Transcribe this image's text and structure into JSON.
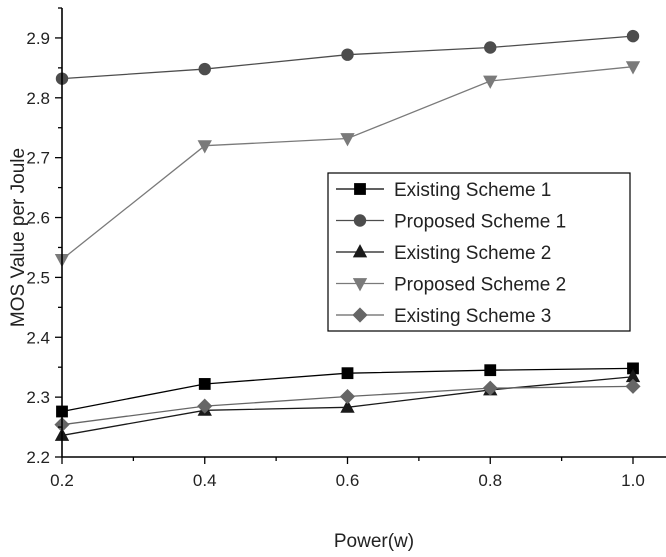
{
  "chart_data": {
    "type": "line",
    "title": "",
    "xlabel": "Power(w)",
    "ylabel": "MOS Value per Joule",
    "xlim": [
      0.2,
      1.0
    ],
    "ylim": [
      2.2,
      2.95
    ],
    "x_ticks": [
      0.2,
      0.4,
      0.6,
      0.8,
      1.0
    ],
    "x_tick_labels": [
      "0.2",
      "0.4",
      "0.6",
      "0.8",
      "1.0"
    ],
    "y_ticks": [
      2.2,
      2.3,
      2.4,
      2.5,
      2.6,
      2.7,
      2.8,
      2.9
    ],
    "y_tick_labels": [
      "2.2",
      "2.3",
      "2.4",
      "2.5",
      "2.6",
      "2.7",
      "2.8",
      "2.9"
    ],
    "legend_position": "center-right",
    "grid": false,
    "x": [
      0.2,
      0.4,
      0.6,
      0.8,
      1.0
    ],
    "series": [
      {
        "name": "Existing Scheme 1",
        "marker": "square",
        "color": "#000000",
        "values": [
          2.276,
          2.322,
          2.34,
          2.345,
          2.348
        ]
      },
      {
        "name": "Proposed Scheme 1",
        "marker": "circle",
        "color": "#4d4d4d",
        "values": [
          2.832,
          2.848,
          2.872,
          2.884,
          2.903
        ]
      },
      {
        "name": "Existing Scheme 2",
        "marker": "triangle-up",
        "color": "#1a1a1a",
        "values": [
          2.236,
          2.278,
          2.283,
          2.312,
          2.334
        ]
      },
      {
        "name": "Proposed Scheme 2",
        "marker": "triangle-down",
        "color": "#7a7a7a",
        "values": [
          2.53,
          2.72,
          2.732,
          2.828,
          2.852
        ]
      },
      {
        "name": "Existing Scheme 3",
        "marker": "diamond",
        "color": "#666666",
        "values": [
          2.254,
          2.285,
          2.301,
          2.315,
          2.318
        ]
      }
    ]
  }
}
